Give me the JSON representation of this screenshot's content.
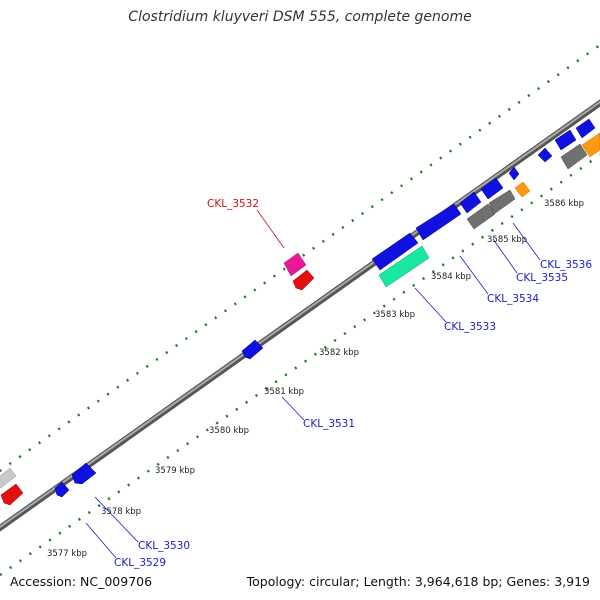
{
  "title": "Clostridium kluyveri DSM 555, complete genome",
  "footer": {
    "accession": "Accession: NC_009706",
    "summary": "Topology: circular; Length: 3,964,618 bp; Genes: 3,919"
  },
  "colors": {
    "backbone": "#888888",
    "ticks": "#1a7a1a",
    "label_blue": "#1a1acc",
    "label_red": "#cc1111"
  },
  "scale_labels": [
    {
      "text": "3577 kbp"
    },
    {
      "text": "3578 kbp"
    },
    {
      "text": "3579 kbp"
    },
    {
      "text": "3580 kbp"
    },
    {
      "text": "3581 kbp"
    },
    {
      "text": "3582 kbp"
    },
    {
      "text": "3583 kbp"
    },
    {
      "text": "3584 kbp"
    },
    {
      "text": "3585 kbp"
    },
    {
      "text": "3586 kbp"
    }
  ],
  "gene_labels": [
    {
      "text": "CKL_3529",
      "color": "#1a1acc"
    },
    {
      "text": "CKL_3530",
      "color": "#1a1acc"
    },
    {
      "text": "CKL_3531",
      "color": "#1a1acc"
    },
    {
      "text": "CKL_3532",
      "color": "#cc1111"
    },
    {
      "text": "CKL_3533",
      "color": "#1a1acc"
    },
    {
      "text": "CKL_3534",
      "color": "#1a1acc"
    },
    {
      "text": "CKL_3535",
      "color": "#1a1acc"
    },
    {
      "text": "CKL_3536",
      "color": "#1a1acc"
    }
  ]
}
